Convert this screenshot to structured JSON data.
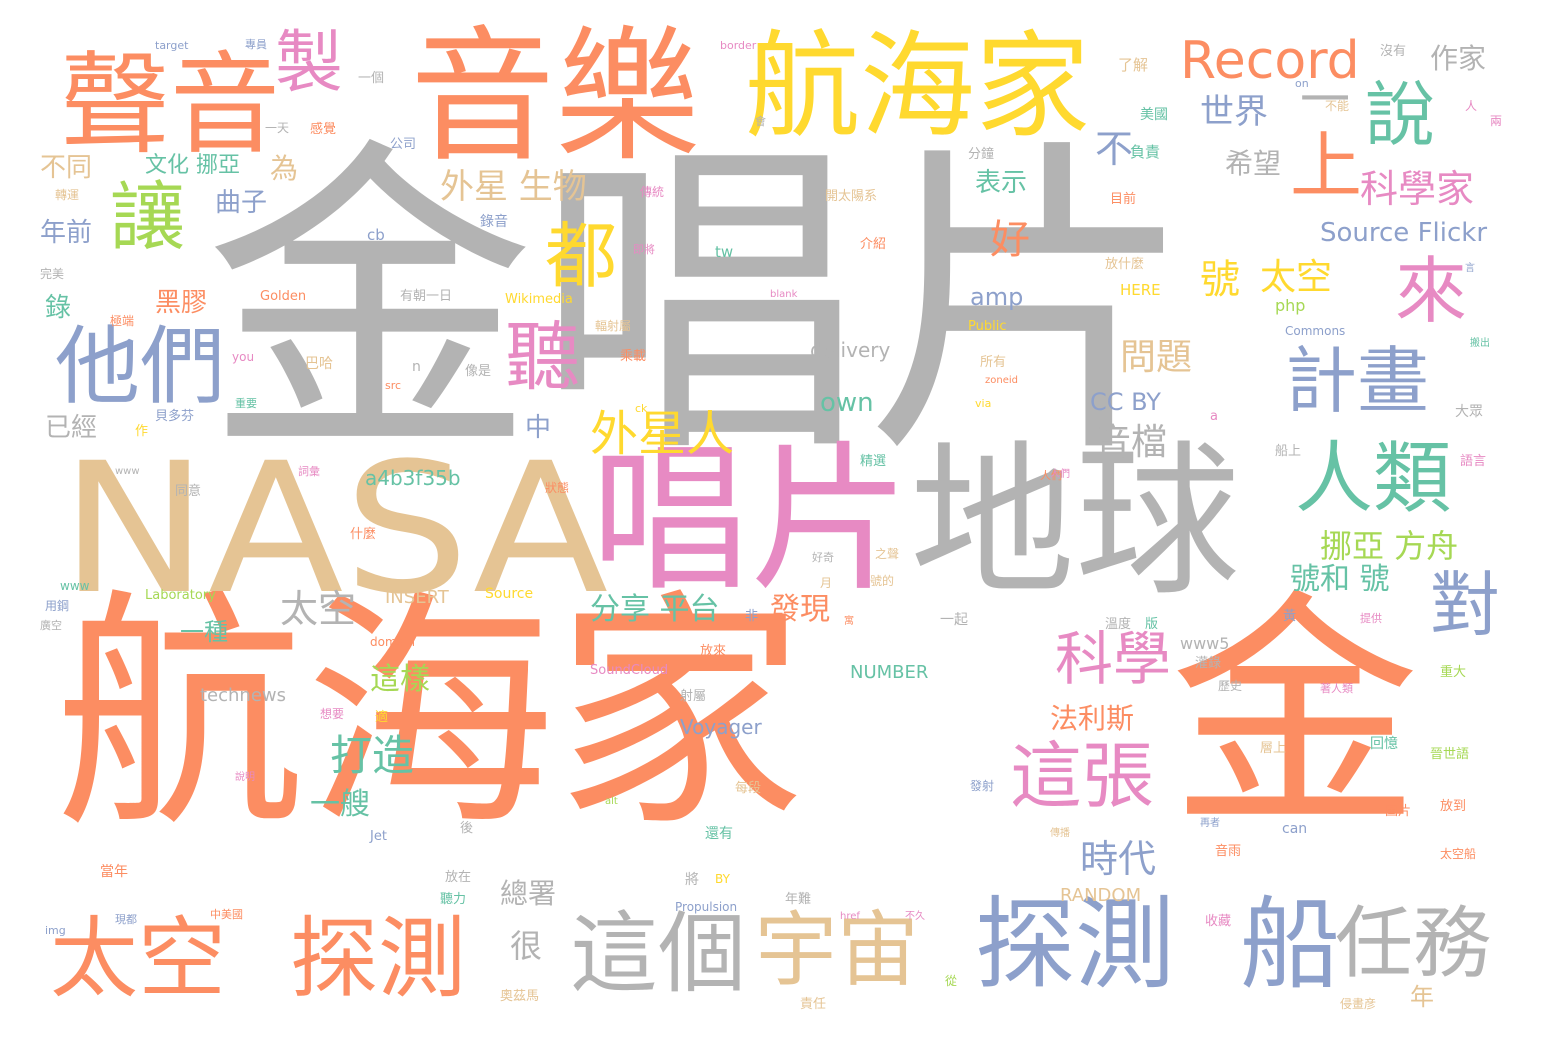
{
  "cloud": {
    "words": [
      {
        "text": "金唱片",
        "color": "#b3b3b3",
        "tier": 1
      },
      {
        "text": "航海家",
        "color": "#fc8d62",
        "tier": 1
      },
      {
        "text": "金",
        "color": "#fc8d62",
        "tier": 1
      },
      {
        "text": "NASA",
        "color": "#e5c494",
        "tier": 2
      },
      {
        "text": "音樂",
        "color": "#fc8d62",
        "tier": 2
      },
      {
        "text": "唱片",
        "color": "#e78ac3",
        "tier": 2
      },
      {
        "text": "地球",
        "color": "#b3b3b3",
        "tier": 2
      },
      {
        "text": "航海家",
        "color": "#ffd92f",
        "tier": 3
      },
      {
        "text": "聲音",
        "color": "#fc8d62",
        "tier": 3
      },
      {
        "text": "探測",
        "color": "#8da0cb",
        "tier": 3
      },
      {
        "text": "船",
        "color": "#8da0cb",
        "tier": 3
      },
      {
        "text": "這個",
        "color": "#b3b3b3",
        "tier": 3
      },
      {
        "text": "宇宙",
        "color": "#e5c494",
        "tier": 3
      },
      {
        "text": "太空",
        "color": "#fc8d62",
        "tier": 3
      },
      {
        "text": "探測",
        "color": "#fc8d62",
        "tier": 3
      },
      {
        "text": "任務",
        "color": "#b3b3b3",
        "tier": 3
      },
      {
        "text": "他們",
        "color": "#8da0cb",
        "tier": 3
      },
      {
        "text": "人類",
        "color": "#66c2a5",
        "tier": 3
      },
      {
        "text": "讓",
        "color": "#a6d854",
        "tier": 3
      },
      {
        "text": "製",
        "color": "#e78ac3",
        "tier": 3
      },
      {
        "text": "聽",
        "color": "#e78ac3",
        "tier": 3
      },
      {
        "text": "都",
        "color": "#ffd92f",
        "tier": 3
      },
      {
        "text": "來",
        "color": "#e78ac3",
        "tier": 3
      },
      {
        "text": "說",
        "color": "#66c2a5",
        "tier": 3
      },
      {
        "text": "上",
        "color": "#fc8d62",
        "tier": 3
      },
      {
        "text": "計畫",
        "color": "#8da0cb",
        "tier": 3
      },
      {
        "text": "這張",
        "color": "#e78ac3",
        "tier": 3
      },
      {
        "text": "對",
        "color": "#8da0cb",
        "tier": 3
      },
      {
        "text": "Record",
        "color": "#fc8d62",
        "tier": 4
      },
      {
        "text": "一",
        "color": "#b3b3b3",
        "tier": 4
      },
      {
        "text": "外星人",
        "color": "#ffd92f",
        "tier": 4
      },
      {
        "text": "科學",
        "color": "#e78ac3",
        "tier": 4
      },
      {
        "text": "時代",
        "color": "#8da0cb",
        "tier": 4
      },
      {
        "text": "打造",
        "color": "#66c2a5",
        "tier": 4
      },
      {
        "text": "世界",
        "color": "#8da0cb",
        "tier": 5
      },
      {
        "text": "科學家",
        "color": "#e78ac3",
        "tier": 5
      },
      {
        "text": "不",
        "color": "#8da0cb",
        "tier": 5
      },
      {
        "text": "好",
        "color": "#fc8d62",
        "tier": 5
      },
      {
        "text": "號",
        "color": "#ffd92f",
        "tier": 5
      },
      {
        "text": "太空",
        "color": "#ffd92f",
        "tier": 5
      },
      {
        "text": "外星 生物",
        "color": "#e5c494",
        "tier": 5
      },
      {
        "text": "問題",
        "color": "#e5c494",
        "tier": 5
      },
      {
        "text": "音檔",
        "color": "#b3b3b3",
        "tier": 5
      },
      {
        "text": "太空",
        "color": "#b3b3b3",
        "tier": 5
      },
      {
        "text": "挪亞 方舟",
        "color": "#a6d854",
        "tier": 5
      },
      {
        "text": "號和 號",
        "color": "#66c2a5",
        "tier": 5
      },
      {
        "text": "分享 平台",
        "color": "#66c2a5",
        "tier": 5
      },
      {
        "text": "發現",
        "color": "#fc8d62",
        "tier": 5
      },
      {
        "text": "這樣",
        "color": "#a6d854",
        "tier": 5
      },
      {
        "text": "法利斯",
        "color": "#fc8d62",
        "tier": 5
      },
      {
        "text": "一艘",
        "color": "#66c2a5",
        "tier": 5
      },
      {
        "text": "很",
        "color": "#b3b3b3",
        "tier": 5
      },
      {
        "text": "Source Flickr",
        "color": "#8da0cb",
        "tier": 5
      },
      {
        "text": "own",
        "color": "#66c2a5",
        "tier": 5
      },
      {
        "text": "CC BY",
        "color": "#8da0cb",
        "tier": 5
      },
      {
        "text": "amp",
        "color": "#8da0cb",
        "tier": 5
      },
      {
        "text": "作家",
        "color": "#b3b3b3",
        "tier": 6
      },
      {
        "text": "希望",
        "color": "#b3b3b3",
        "tier": 6
      },
      {
        "text": "表示",
        "color": "#66c2a5",
        "tier": 6
      },
      {
        "text": "不同",
        "color": "#e5c494",
        "tier": 6
      },
      {
        "text": "文化 挪亞",
        "color": "#66c2a5",
        "tier": 6
      },
      {
        "text": "為",
        "color": "#e5c494",
        "tier": 6
      },
      {
        "text": "曲子",
        "color": "#8da0cb",
        "tier": 6
      },
      {
        "text": "年前",
        "color": "#8da0cb",
        "tier": 6
      },
      {
        "text": "黑膠",
        "color": "#fc8d62",
        "tier": 6
      },
      {
        "text": "錄",
        "color": "#66c2a5",
        "tier": 6
      },
      {
        "text": "已經",
        "color": "#b3b3b3",
        "tier": 6
      },
      {
        "text": "中",
        "color": "#8da0cb",
        "tier": 6
      },
      {
        "text": "一種",
        "color": "#66c2a5",
        "tier": 6
      },
      {
        "text": "總署",
        "color": "#b3b3b3",
        "tier": 6
      },
      {
        "text": "年",
        "color": "#e5c494",
        "tier": 6
      },
      {
        "text": "delivery",
        "color": "#b3b3b3",
        "tier": 6
      },
      {
        "text": "a4b3f35b",
        "color": "#66c2a5",
        "tier": 6
      },
      {
        "text": "Voyager",
        "color": "#8da0cb",
        "tier": 6
      },
      {
        "text": "technews",
        "color": "#b3b3b3",
        "tier": 6
      },
      {
        "text": "NUMBER",
        "color": "#66c2a5",
        "tier": 6
      },
      {
        "text": "INSERT",
        "color": "#e5c494",
        "tier": 6
      },
      {
        "text": "RANDOM",
        "color": "#e5c494",
        "tier": 6
      },
      {
        "text": "www5",
        "color": "#b3b3b3",
        "tier": 6
      },
      {
        "text": "php",
        "color": "#a6d854",
        "tier": 6
      },
      {
        "text": "了解",
        "color": "#e5c494",
        "tier": 7
      },
      {
        "text": "沒有",
        "color": "#b3b3b3",
        "tier": 7
      },
      {
        "text": "美國",
        "color": "#66c2a5",
        "tier": 7
      },
      {
        "text": "負責",
        "color": "#66c2a5",
        "tier": 7
      },
      {
        "text": "分鐘",
        "color": "#b3b3b3",
        "tier": 7
      },
      {
        "text": "開太陽系",
        "color": "#e5c494",
        "tier": 7
      },
      {
        "text": "目前",
        "color": "#fc8d62",
        "tier": 7
      },
      {
        "text": "介紹",
        "color": "#fc8d62",
        "tier": 7
      },
      {
        "text": "放什麼",
        "color": "#e5c494",
        "tier": 7
      },
      {
        "text": "HERE",
        "color": "#ffd92f",
        "tier": 7
      },
      {
        "text": "Commons",
        "color": "#8da0cb",
        "tier": 7
      },
      {
        "text": "一個",
        "color": "#b3b3b3",
        "tier": 7
      },
      {
        "text": "公司",
        "color": "#8da0cb",
        "tier": 7
      },
      {
        "text": "感覺",
        "color": "#fc8d62",
        "tier": 7
      },
      {
        "text": "一天",
        "color": "#b3b3b3",
        "tier": 7
      },
      {
        "text": "轉運",
        "color": "#e5c494",
        "tier": 7
      },
      {
        "text": "錄音",
        "color": "#8da0cb",
        "tier": 7
      },
      {
        "text": "完美",
        "color": "#b3b3b3",
        "tier": 7
      },
      {
        "text": "極端",
        "color": "#fc8d62",
        "tier": 7
      },
      {
        "text": "Golden",
        "color": "#fc8d62",
        "tier": 7
      },
      {
        "text": "有朝一日",
        "color": "#b3b3b3",
        "tier": 7
      },
      {
        "text": "Wikimedia",
        "color": "#ffd92f",
        "tier": 7
      },
      {
        "text": "輻射屬",
        "color": "#e5c494",
        "tier": 7
      },
      {
        "text": "乘載",
        "color": "#fc8d62",
        "tier": 7
      },
      {
        "text": "巴哈",
        "color": "#e5c494",
        "tier": 7
      },
      {
        "text": "像是",
        "color": "#b3b3b3",
        "tier": 7
      },
      {
        "text": "貝多芬",
        "color": "#8da0cb",
        "tier": 7
      },
      {
        "text": "所有",
        "color": "#e5c494",
        "tier": 7
      },
      {
        "text": "Public",
        "color": "#ffd92f",
        "tier": 7
      },
      {
        "text": "精選",
        "color": "#66c2a5",
        "tier": 7
      },
      {
        "text": "狀態",
        "color": "#fc8d62",
        "tier": 7
      },
      {
        "text": "同意",
        "color": "#b3b3b3",
        "tier": 7
      },
      {
        "text": "什麼",
        "color": "#fc8d62",
        "tier": 7
      },
      {
        "text": "之聲",
        "color": "#e5c494",
        "tier": 7
      },
      {
        "text": "號的",
        "color": "#e5c494",
        "tier": 7
      },
      {
        "text": "Laboratory",
        "color": "#a6d854",
        "tier": 7
      },
      {
        "text": "Source",
        "color": "#ffd92f",
        "tier": 7
      },
      {
        "text": "用鋼",
        "color": "#8da0cb",
        "tier": 7
      },
      {
        "text": "domain",
        "color": "#fc8d62",
        "tier": 7
      },
      {
        "text": "SoundCloud",
        "color": "#e78ac3",
        "tier": 7
      },
      {
        "text": "溫度",
        "color": "#b3b3b3",
        "tier": 7
      },
      {
        "text": "版",
        "color": "#66c2a5",
        "tier": 7
      },
      {
        "text": "歷史",
        "color": "#b3b3b3",
        "tier": 7
      },
      {
        "text": "重大",
        "color": "#a6d854",
        "tier": 7
      },
      {
        "text": "回憶",
        "color": "#66c2a5",
        "tier": 7
      },
      {
        "text": "晉世語",
        "color": "#a6d854",
        "tier": 7
      },
      {
        "text": "每段",
        "color": "#e5c494",
        "tier": 7
      },
      {
        "text": "發射",
        "color": "#8da0cb",
        "tier": 7
      },
      {
        "text": "圖片",
        "color": "#fc8d62",
        "tier": 7
      },
      {
        "text": "放到",
        "color": "#fc8d62",
        "tier": 7
      },
      {
        "text": "Jet",
        "color": "#8da0cb",
        "tier": 7
      },
      {
        "text": "還有",
        "color": "#66c2a5",
        "tier": 7
      },
      {
        "text": "can",
        "color": "#8da0cb",
        "tier": 7
      },
      {
        "text": "音雨",
        "color": "#fc8d62",
        "tier": 7
      },
      {
        "text": "太空船",
        "color": "#fc8d62",
        "tier": 7
      },
      {
        "text": "當年",
        "color": "#fc8d62",
        "tier": 7
      },
      {
        "text": "放在",
        "color": "#b3b3b3",
        "tier": 7
      },
      {
        "text": "將",
        "color": "#b3b3b3",
        "tier": 7
      },
      {
        "text": "BY",
        "color": "#ffd92f",
        "tier": 7
      },
      {
        "text": "Propulsion",
        "color": "#8da0cb",
        "tier": 7
      },
      {
        "text": "年難",
        "color": "#b3b3b3",
        "tier": 7
      },
      {
        "text": "收藏",
        "color": "#e78ac3",
        "tier": 7
      },
      {
        "text": "聽力",
        "color": "#66c2a5",
        "tier": 7
      },
      {
        "text": "奧茲馬",
        "color": "#e5c494",
        "tier": 7
      },
      {
        "text": "責任",
        "color": "#e5c494",
        "tier": 7
      },
      {
        "text": "從",
        "color": "#a6d854",
        "tier": 7
      },
      {
        "text": "侵畫彦",
        "color": "#e5c494",
        "tier": 7
      },
      {
        "text": "大眾",
        "color": "#b3b3b3",
        "tier": 7
      },
      {
        "text": "船上",
        "color": "#b3b3b3",
        "tier": 7
      },
      {
        "text": "語言",
        "color": "#e78ac3",
        "tier": 7
      },
      {
        "text": "兩",
        "color": "#e78ac3",
        "tier": 7
      },
      {
        "text": "人",
        "color": "#e78ac3",
        "tier": 7
      },
      {
        "text": "不能",
        "color": "#e5c494",
        "tier": 7
      },
      {
        "text": "on",
        "color": "#8da0cb",
        "tier": 7
      },
      {
        "text": "a",
        "color": "#e78ac3",
        "tier": 7
      },
      {
        "text": "n",
        "color": "#b3b3b3",
        "tier": 7
      },
      {
        "text": "tw",
        "color": "#66c2a5",
        "tier": 7
      },
      {
        "text": "cb",
        "color": "#8da0cb",
        "tier": 7
      },
      {
        "text": "www",
        "color": "#66c2a5",
        "tier": 7
      },
      {
        "text": "you",
        "color": "#e78ac3",
        "tier": 7
      },
      {
        "text": "作",
        "color": "#ffd92f",
        "tier": 7
      },
      {
        "text": "適",
        "color": "#ffd92f",
        "tier": 7
      },
      {
        "text": "想要",
        "color": "#e78ac3",
        "tier": 7
      },
      {
        "text": "月",
        "color": "#e5c494",
        "tier": 7
      },
      {
        "text": "非",
        "color": "#8da0cb",
        "tier": 7
      },
      {
        "text": "一起",
        "color": "#b3b3b3",
        "tier": 7
      },
      {
        "text": "射屬",
        "color": "#b3b3b3",
        "tier": 7
      },
      {
        "text": "灌錄",
        "color": "#b3b3b3",
        "tier": 7
      },
      {
        "text": "後",
        "color": "#b3b3b3",
        "tier": 7
      },
      {
        "text": "層上",
        "color": "#e5c494",
        "tier": 7
      },
      {
        "text": "放來",
        "color": "#fc8d62",
        "tier": 7
      },
      {
        "text": "黃",
        "color": "#8da0cb",
        "tier": 7
      },
      {
        "text": "提供",
        "color": "#e78ac3",
        "tier": 8
      },
      {
        "text": "著人類",
        "color": "#e78ac3",
        "tier": 8
      },
      {
        "text": "人們",
        "color": "#fc8d62",
        "tier": 8
      },
      {
        "text": "傳統",
        "color": "#e78ac3",
        "tier": 8
      },
      {
        "text": "即將",
        "color": "#e78ac3",
        "tier": 8
      },
      {
        "text": "會",
        "color": "#b3b3b3",
        "tier": 8
      },
      {
        "text": "border",
        "color": "#e78ac3",
        "tier": 8
      },
      {
        "text": "target",
        "color": "#8da0cb",
        "tier": 8
      },
      {
        "text": "專員",
        "color": "#8da0cb",
        "tier": 8
      },
      {
        "text": "blank",
        "color": "#e78ac3",
        "tier": 8
      },
      {
        "text": "src",
        "color": "#fc8d62",
        "tier": 8
      },
      {
        "text": "zoneid",
        "color": "#fc8d62",
        "tier": 8
      },
      {
        "text": "via",
        "color": "#ffd92f",
        "tier": 8
      },
      {
        "text": "重要",
        "color": "#66c2a5",
        "tier": 8
      },
      {
        "text": "ck",
        "color": "#ffd92f",
        "tier": 8
      },
      {
        "text": "詞彙",
        "color": "#e78ac3",
        "tier": 8
      },
      {
        "text": "www",
        "color": "#b3b3b3",
        "tier": 8
      },
      {
        "text": "好奇",
        "color": "#b3b3b3",
        "tier": 8
      },
      {
        "text": "人們",
        "color": "#e78ac3",
        "tier": 8
      },
      {
        "text": "寓",
        "color": "#fc8d62",
        "tier": 8
      },
      {
        "text": "搬出",
        "color": "#66c2a5",
        "tier": 8
      },
      {
        "text": "再者",
        "color": "#8da0cb",
        "tier": 8
      },
      {
        "text": "img",
        "color": "#8da0cb",
        "tier": 8
      },
      {
        "text": "現都",
        "color": "#8da0cb",
        "tier": 8
      },
      {
        "text": "中美國",
        "color": "#fc8d62",
        "tier": 8
      },
      {
        "text": "href",
        "color": "#e78ac3",
        "tier": 8
      },
      {
        "text": "不久",
        "color": "#e78ac3",
        "tier": 8
      },
      {
        "text": "alt",
        "color": "#a6d854",
        "tier": 8
      },
      {
        "text": "言",
        "color": "#8da0cb",
        "tier": 8
      },
      {
        "text": "說明",
        "color": "#e78ac3",
        "tier": 8
      },
      {
        "text": "傳播",
        "color": "#e5c494",
        "tier": 8
      },
      {
        "text": "廣空",
        "color": "#b3b3b3",
        "tier": 8
      }
    ]
  }
}
